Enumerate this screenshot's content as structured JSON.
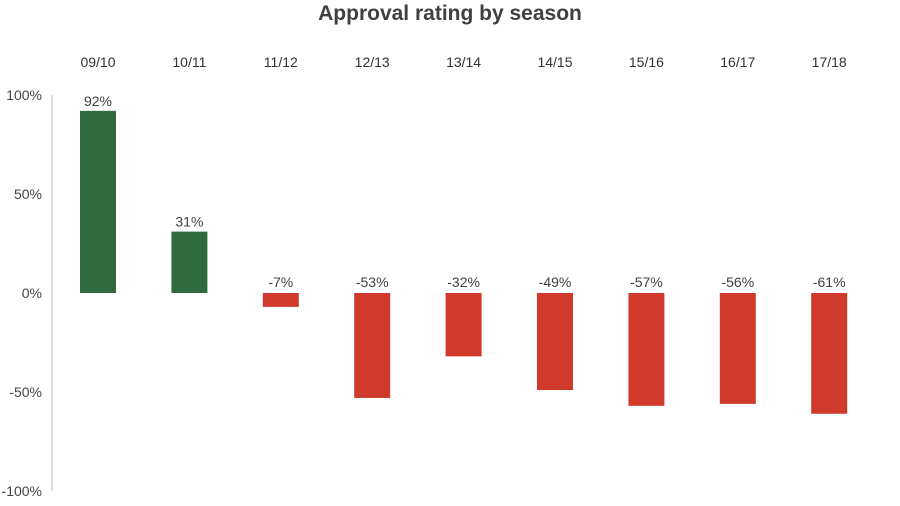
{
  "chart_data": {
    "type": "bar",
    "title": "Approval rating by season",
    "xlabel": "",
    "ylabel": "",
    "categories": [
      "09/10",
      "10/11",
      "11/12",
      "12/13",
      "13/14",
      "14/15",
      "15/16",
      "16/17",
      "17/18"
    ],
    "values": [
      92,
      31,
      -7,
      -53,
      -32,
      -49,
      -57,
      -56,
      -61
    ],
    "data_labels": [
      "92%",
      "31%",
      "-7%",
      "-53%",
      "-32%",
      "-49%",
      "-57%",
      "-56%",
      "-61%"
    ],
    "ylim": [
      -100,
      100
    ],
    "yticks": [
      100,
      50,
      0,
      -50,
      -100
    ],
    "ytick_labels": [
      "100%",
      "50%",
      "0%",
      "-50%",
      "-100%"
    ],
    "category_axis_position": "top",
    "grid": false,
    "legend": "none",
    "colors": {
      "positive": "#2f6b3f",
      "negative": "#cf3a2c"
    }
  }
}
